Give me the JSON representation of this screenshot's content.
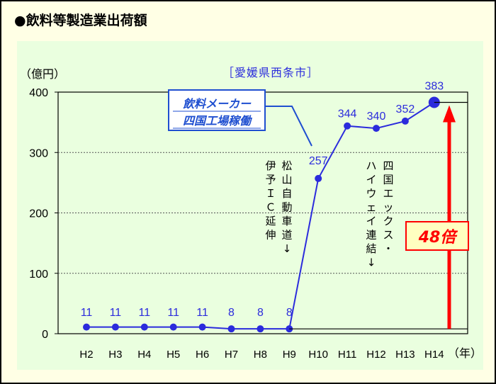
{
  "header_title": "●飲料等製造業出荷額",
  "chart_data": {
    "type": "line",
    "title": "［愛媛県西条市］",
    "ylabel": "（億円）",
    "xlabel": "（年）",
    "categories": [
      "H2",
      "H3",
      "H4",
      "H5",
      "H6",
      "H7",
      "H8",
      "H9",
      "H10",
      "H11",
      "H12",
      "H13",
      "H14"
    ],
    "series": [
      {
        "values": [
          11,
          11,
          11,
          11,
          11,
          8,
          8,
          8,
          257,
          344,
          340,
          352,
          383
        ]
      }
    ],
    "data_labels": [
      "11",
      "11",
      "11",
      "11",
      "11",
      "8",
      "8",
      "8",
      "257",
      "344",
      "340",
      "352",
      "383"
    ],
    "ylim": [
      0,
      400
    ],
    "yticks": [
      "0",
      "100",
      "200",
      "300",
      "400"
    ],
    "grid": "horizontal dotted",
    "annotations": {
      "callout_line1": "飲料メーカー",
      "callout_line2": "四国工場稼働",
      "note_col_left": "伊予ＩＣ延伸",
      "note_col_right": "松山自動車道↓",
      "note2_col_left": "ハイウェイ連結↓",
      "note2_col_right": "四国エックス・",
      "multiplier": "48倍"
    },
    "colors": {
      "line": "#2b2bdc",
      "highlight": "#ff0000",
      "arrow": "#ff0000",
      "callout_border": "#1f4fd0",
      "multiplier_bg": "#ffffc0"
    }
  }
}
